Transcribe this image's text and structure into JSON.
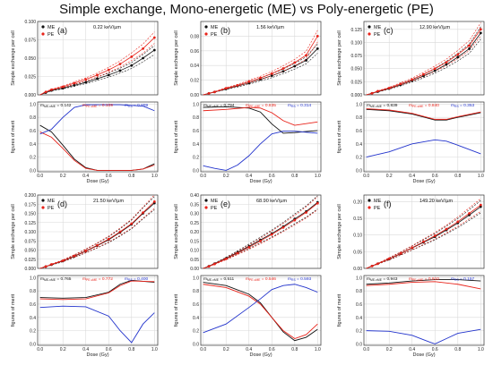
{
  "title": "Simple exchange, Mono-energetic (ME) vs Poly-energetic (PE)",
  "colors": {
    "me": "#111111",
    "pe": "#e8231a",
    "merit_me": "#111111",
    "merit_pe": "#e8231a",
    "merit_rs": "#2233cc",
    "grid": "#d9d9d9"
  },
  "top_ylabel": "Simple exchange per cell",
  "bottom_ylabel": "figures of merit",
  "xlabel": "Dose (Gy)",
  "legend": [
    "ME",
    "PE"
  ],
  "x_ticks": [
    "0.0",
    "0.2",
    "0.4",
    "0.6",
    "0.8",
    "1.0"
  ],
  "merit_ticks": [
    "0.0",
    "0.2",
    "0.4",
    "0.6",
    "0.8",
    "1.0"
  ],
  "merit_label_me": "m",
  "merit_label_pe": "m",
  "merit_label_rs": "m",
  "chart_data": [
    {
      "type": "scatter",
      "panel": "(a)",
      "let": "0.22 keV/µm",
      "yticks": [
        "0.000",
        "0.025",
        "0.050",
        "0.075",
        "0.100"
      ],
      "ylim": [
        0,
        0.1
      ],
      "x": [
        0.0,
        0.05,
        0.1,
        0.2,
        0.3,
        0.4,
        0.5,
        0.6,
        0.7,
        0.8,
        0.9,
        1.0
      ],
      "me_values": [
        0.0,
        0.003,
        0.006,
        0.009,
        0.013,
        0.017,
        0.022,
        0.027,
        0.033,
        0.04,
        0.05,
        0.061
      ],
      "pe_values": [
        0.0,
        0.004,
        0.007,
        0.011,
        0.016,
        0.021,
        0.027,
        0.034,
        0.042,
        0.052,
        0.063,
        0.078
      ],
      "merit_me": "0.142",
      "merit_pe": "0.109",
      "merit_rs": "0.899",
      "merit_curves": {
        "me": [
          [
            0.0,
            0.68
          ],
          [
            0.1,
            0.58
          ],
          [
            0.2,
            0.38
          ],
          [
            0.3,
            0.17
          ],
          [
            0.4,
            0.04
          ],
          [
            0.5,
            0.0
          ],
          [
            0.6,
            0.0
          ],
          [
            0.7,
            0.0
          ],
          [
            0.8,
            0.0
          ],
          [
            0.9,
            0.02
          ],
          [
            1.0,
            0.1
          ]
        ],
        "pe": [
          [
            0.0,
            0.58
          ],
          [
            0.1,
            0.5
          ],
          [
            0.2,
            0.33
          ],
          [
            0.3,
            0.15
          ],
          [
            0.4,
            0.03
          ],
          [
            0.5,
            0.0
          ],
          [
            0.6,
            0.0
          ],
          [
            0.7,
            0.0
          ],
          [
            0.8,
            0.0
          ],
          [
            0.9,
            0.02
          ],
          [
            1.0,
            0.08
          ]
        ],
        "rs": [
          [
            0.0,
            0.55
          ],
          [
            0.1,
            0.62
          ],
          [
            0.2,
            0.8
          ],
          [
            0.3,
            0.95
          ],
          [
            0.4,
            0.99
          ],
          [
            0.5,
            0.99
          ],
          [
            0.6,
            0.99
          ],
          [
            0.7,
            0.99
          ],
          [
            0.8,
            0.98
          ],
          [
            0.9,
            0.97
          ],
          [
            1.0,
            0.9
          ]
        ]
      }
    },
    {
      "type": "scatter",
      "panel": "(b)",
      "let": "1.56 keV/µm",
      "yticks": [
        "0.00",
        "0.02",
        "0.04",
        "0.06",
        "0.08"
      ],
      "ylim": [
        0,
        0.1
      ],
      "x": [
        0.0,
        0.05,
        0.1,
        0.2,
        0.3,
        0.4,
        0.5,
        0.6,
        0.7,
        0.8,
        0.9,
        1.0
      ],
      "me_values": [
        0.0,
        0.002,
        0.004,
        0.008,
        0.012,
        0.016,
        0.021,
        0.026,
        0.032,
        0.039,
        0.047,
        0.063
      ],
      "pe_values": [
        0.0,
        0.002,
        0.004,
        0.009,
        0.013,
        0.018,
        0.023,
        0.029,
        0.036,
        0.044,
        0.054,
        0.08
      ],
      "merit_me": "0.794",
      "merit_pe": "0.835",
      "merit_rs": "0.314",
      "merit_curves": {
        "me": [
          [
            0.0,
            0.95
          ],
          [
            0.2,
            0.96
          ],
          [
            0.4,
            0.94
          ],
          [
            0.5,
            0.88
          ],
          [
            0.6,
            0.7
          ],
          [
            0.7,
            0.56
          ],
          [
            0.8,
            0.57
          ],
          [
            1.0,
            0.6
          ]
        ],
        "pe": [
          [
            0.0,
            0.9
          ],
          [
            0.2,
            0.92
          ],
          [
            0.4,
            0.95
          ],
          [
            0.5,
            0.94
          ],
          [
            0.6,
            0.87
          ],
          [
            0.7,
            0.75
          ],
          [
            0.8,
            0.68
          ],
          [
            1.0,
            0.73
          ]
        ],
        "rs": [
          [
            0.0,
            0.07
          ],
          [
            0.1,
            0.03
          ],
          [
            0.2,
            0.0
          ],
          [
            0.3,
            0.08
          ],
          [
            0.4,
            0.22
          ],
          [
            0.5,
            0.4
          ],
          [
            0.6,
            0.55
          ],
          [
            0.7,
            0.59
          ],
          [
            0.8,
            0.59
          ],
          [
            1.0,
            0.56
          ]
        ]
      }
    },
    {
      "type": "scatter",
      "panel": "(c)",
      "let": "12.90 keV/µm",
      "yticks": [
        "0.000",
        "0.025",
        "0.050",
        "0.075",
        "0.100",
        "0.125"
      ],
      "ylim": [
        0,
        0.14
      ],
      "x": [
        0.0,
        0.05,
        0.1,
        0.2,
        0.3,
        0.4,
        0.5,
        0.6,
        0.7,
        0.8,
        0.9,
        1.0
      ],
      "me_values": [
        0.0,
        0.003,
        0.006,
        0.012,
        0.019,
        0.027,
        0.036,
        0.046,
        0.058,
        0.072,
        0.088,
        0.118
      ],
      "pe_values": [
        0.0,
        0.003,
        0.007,
        0.013,
        0.021,
        0.029,
        0.039,
        0.05,
        0.062,
        0.077,
        0.094,
        0.125
      ],
      "merit_me": "0.839",
      "merit_pe": "0.840",
      "merit_rs": "0.353",
      "merit_curves": {
        "me": [
          [
            0.0,
            0.92
          ],
          [
            0.2,
            0.9
          ],
          [
            0.4,
            0.85
          ],
          [
            0.6,
            0.76
          ],
          [
            0.7,
            0.76
          ],
          [
            0.8,
            0.8
          ],
          [
            1.0,
            0.87
          ]
        ],
        "pe": [
          [
            0.0,
            0.93
          ],
          [
            0.2,
            0.91
          ],
          [
            0.4,
            0.86
          ],
          [
            0.6,
            0.77
          ],
          [
            0.7,
            0.77
          ],
          [
            0.8,
            0.81
          ],
          [
            1.0,
            0.88
          ]
        ],
        "rs": [
          [
            0.0,
            0.2
          ],
          [
            0.2,
            0.28
          ],
          [
            0.4,
            0.4
          ],
          [
            0.6,
            0.46
          ],
          [
            0.7,
            0.44
          ],
          [
            0.8,
            0.38
          ],
          [
            1.0,
            0.25
          ]
        ]
      }
    },
    {
      "type": "scatter",
      "panel": "(d)",
      "let": "21.50 keV/µm",
      "yticks": [
        "0.000",
        "0.025",
        "0.050",
        "0.075",
        "0.100",
        "0.125",
        "0.150",
        "0.175",
        "0.200"
      ],
      "ylim": [
        0,
        0.2
      ],
      "x": [
        0.0,
        0.05,
        0.1,
        0.2,
        0.3,
        0.4,
        0.5,
        0.6,
        0.7,
        0.8,
        0.9,
        1.0
      ],
      "me_values": [
        0.0,
        0.005,
        0.01,
        0.02,
        0.033,
        0.047,
        0.062,
        0.078,
        0.098,
        0.12,
        0.15,
        0.178
      ],
      "pe_values": [
        0.0,
        0.005,
        0.011,
        0.021,
        0.034,
        0.048,
        0.063,
        0.08,
        0.1,
        0.122,
        0.152,
        0.182
      ],
      "merit_me": "0.765",
      "merit_pe": "0.772",
      "merit_rs": "0.400",
      "merit_curves": {
        "me": [
          [
            0.0,
            0.7
          ],
          [
            0.2,
            0.69
          ],
          [
            0.4,
            0.7
          ],
          [
            0.6,
            0.78
          ],
          [
            0.7,
            0.9
          ],
          [
            0.8,
            0.96
          ],
          [
            1.0,
            0.93
          ]
        ],
        "pe": [
          [
            0.0,
            0.68
          ],
          [
            0.2,
            0.67
          ],
          [
            0.4,
            0.68
          ],
          [
            0.6,
            0.77
          ],
          [
            0.7,
            0.88
          ],
          [
            0.8,
            0.95
          ],
          [
            1.0,
            0.94
          ]
        ],
        "rs": [
          [
            0.0,
            0.55
          ],
          [
            0.2,
            0.57
          ],
          [
            0.4,
            0.56
          ],
          [
            0.6,
            0.42
          ],
          [
            0.7,
            0.2
          ],
          [
            0.8,
            0.02
          ],
          [
            0.9,
            0.3
          ],
          [
            1.0,
            0.47
          ]
        ]
      }
    },
    {
      "type": "scatter",
      "panel": "(e)",
      "let": "68.90 keV/µm",
      "yticks": [
        "0.00",
        "0.05",
        "0.10",
        "0.15",
        "0.20",
        "0.25",
        "0.30",
        "0.35",
        "0.40"
      ],
      "ylim": [
        0,
        0.4
      ],
      "x": [
        0.0,
        0.05,
        0.1,
        0.2,
        0.3,
        0.4,
        0.5,
        0.6,
        0.7,
        0.8,
        0.9,
        1.0
      ],
      "me_values": [
        0.0,
        0.012,
        0.026,
        0.055,
        0.087,
        0.12,
        0.155,
        0.19,
        0.228,
        0.27,
        0.31,
        0.36
      ],
      "pe_values": [
        0.0,
        0.011,
        0.024,
        0.052,
        0.083,
        0.115,
        0.149,
        0.185,
        0.223,
        0.263,
        0.305,
        0.355
      ],
      "merit_me": "0.511",
      "merit_pe": "0.546",
      "merit_rs": "0.593",
      "merit_curves": {
        "me": [
          [
            0.0,
            0.93
          ],
          [
            0.2,
            0.88
          ],
          [
            0.4,
            0.75
          ],
          [
            0.5,
            0.62
          ],
          [
            0.6,
            0.4
          ],
          [
            0.7,
            0.18
          ],
          [
            0.8,
            0.05
          ],
          [
            0.9,
            0.1
          ],
          [
            1.0,
            0.22
          ]
        ],
        "pe": [
          [
            0.0,
            0.9
          ],
          [
            0.2,
            0.85
          ],
          [
            0.4,
            0.72
          ],
          [
            0.5,
            0.6
          ],
          [
            0.6,
            0.4
          ],
          [
            0.7,
            0.2
          ],
          [
            0.8,
            0.08
          ],
          [
            0.9,
            0.14
          ],
          [
            1.0,
            0.3
          ]
        ],
        "rs": [
          [
            0.0,
            0.17
          ],
          [
            0.2,
            0.3
          ],
          [
            0.4,
            0.55
          ],
          [
            0.5,
            0.68
          ],
          [
            0.6,
            0.82
          ],
          [
            0.7,
            0.88
          ],
          [
            0.8,
            0.9
          ],
          [
            0.9,
            0.85
          ],
          [
            1.0,
            0.78
          ]
        ]
      }
    },
    {
      "type": "scatter",
      "panel": "(f)",
      "let": "149.20 keV/µm",
      "yticks": [
        "0.00",
        "0.05",
        "0.10",
        "0.15",
        "0.20"
      ],
      "ylim": [
        0,
        0.22
      ],
      "x": [
        0.0,
        0.05,
        0.1,
        0.2,
        0.3,
        0.4,
        0.5,
        0.6,
        0.7,
        0.8,
        0.9,
        1.0
      ],
      "me_values": [
        0.0,
        0.007,
        0.014,
        0.028,
        0.044,
        0.061,
        0.078,
        0.095,
        0.115,
        0.136,
        0.16,
        0.185
      ],
      "pe_values": [
        0.0,
        0.007,
        0.014,
        0.029,
        0.045,
        0.062,
        0.08,
        0.098,
        0.118,
        0.14,
        0.165,
        0.19
      ],
      "merit_me": "0.943",
      "merit_pe": "0.910",
      "merit_rs": "0.157",
      "merit_curves": {
        "me": [
          [
            0.0,
            0.9
          ],
          [
            0.2,
            0.92
          ],
          [
            0.4,
            0.95
          ],
          [
            0.6,
            0.97
          ],
          [
            0.8,
            0.97
          ],
          [
            1.0,
            0.95
          ]
        ],
        "pe": [
          [
            0.0,
            0.88
          ],
          [
            0.2,
            0.9
          ],
          [
            0.4,
            0.93
          ],
          [
            0.6,
            0.94
          ],
          [
            0.8,
            0.9
          ],
          [
            1.0,
            0.83
          ]
        ],
        "rs": [
          [
            0.0,
            0.2
          ],
          [
            0.2,
            0.19
          ],
          [
            0.4,
            0.13
          ],
          [
            0.55,
            0.03
          ],
          [
            0.6,
            0.0
          ],
          [
            0.7,
            0.08
          ],
          [
            0.8,
            0.16
          ],
          [
            1.0,
            0.22
          ]
        ]
      }
    }
  ]
}
